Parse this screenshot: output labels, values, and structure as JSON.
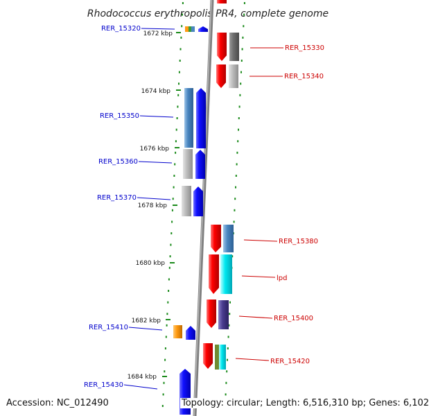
{
  "title": "Rhodococcus erythropolis PR4, complete genome",
  "footer": {
    "accession": "Accession: NC_012490",
    "topology": "Topology: circular; Length: 6,516,310 bp; Genes: 6,102"
  },
  "scale": {
    "unit": "kbp",
    "ticks": [
      {
        "value": 1672,
        "label": "1672 kbp"
      },
      {
        "value": 1674,
        "label": "1674 kbp"
      },
      {
        "value": 1676,
        "label": "1676 kbp"
      },
      {
        "value": 1678,
        "label": "1678 kbp"
      },
      {
        "value": 1680,
        "label": "1680 kbp"
      },
      {
        "value": 1682,
        "label": "1682 kbp"
      },
      {
        "value": 1684,
        "label": "1684 kbp"
      }
    ]
  },
  "colors": {
    "left_gene_label": "#0000cc",
    "right_gene_label": "#cc0000",
    "backbone": "#888888",
    "tick": "#1a8a1a"
  },
  "left_labels": [
    {
      "label": "RER_15320"
    },
    {
      "label": "RER_15350"
    },
    {
      "label": "RER_15360"
    },
    {
      "label": "RER_15370"
    },
    {
      "label": "RER_15410"
    },
    {
      "label": "RER_15430"
    }
  ],
  "right_labels": [
    {
      "label": "RER_15330"
    },
    {
      "label": "RER_15340"
    },
    {
      "label": "RER_15380"
    },
    {
      "label": "lpd"
    },
    {
      "label": "RER_15400"
    },
    {
      "label": "RER_15420"
    }
  ]
}
